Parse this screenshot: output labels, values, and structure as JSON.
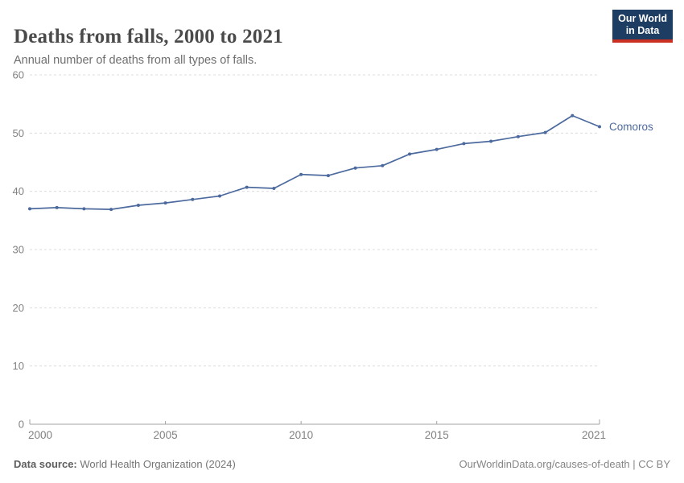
{
  "header": {
    "title": "Deaths from falls, 2000 to 2021",
    "subtitle": "Annual number of deaths from all types of falls.",
    "logo": {
      "line1": "Our World",
      "line2": "in Data"
    }
  },
  "chart_data": {
    "type": "line",
    "title": "Deaths from falls, 2000 to 2021",
    "xlabel": "",
    "ylabel": "",
    "xlim": [
      2000,
      2021
    ],
    "ylim": [
      0,
      60
    ],
    "x_ticks": [
      2000,
      2005,
      2010,
      2015,
      2021
    ],
    "y_ticks": [
      0,
      10,
      20,
      30,
      40,
      50,
      60
    ],
    "grid": "horizontal-dashed",
    "legend_position": "end-of-line",
    "series": [
      {
        "name": "Comoros",
        "color": "#4C6A9E",
        "x": [
          2000,
          2001,
          2002,
          2003,
          2004,
          2005,
          2006,
          2007,
          2008,
          2009,
          2010,
          2011,
          2012,
          2013,
          2014,
          2015,
          2016,
          2017,
          2018,
          2019,
          2020,
          2021
        ],
        "values": [
          37.0,
          37.2,
          37.0,
          36.9,
          37.6,
          38.0,
          38.6,
          39.2,
          40.7,
          40.5,
          42.9,
          42.7,
          44.0,
          44.4,
          46.4,
          47.2,
          48.2,
          48.6,
          49.4,
          50.1,
          53.0,
          51.1
        ]
      }
    ]
  },
  "colors": {
    "gridline": "#dcdcdc",
    "axis": "#a3a3a3",
    "tick_label": "#818181",
    "logo_bg": "#1d3d63",
    "logo_accent": "#cb2f22"
  },
  "footer": {
    "source_label": "Data source:",
    "source_text": " World Health Organization (2024)",
    "credit": "OurWorldinData.org/causes-of-death | CC BY"
  }
}
